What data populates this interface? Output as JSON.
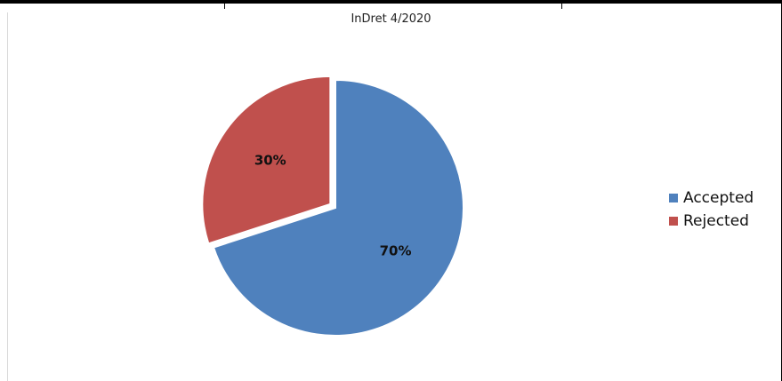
{
  "chart_data": {
    "type": "pie",
    "title": "InDret 4/2020",
    "categories": [
      "Accepted",
      "Rejected"
    ],
    "values": [
      70,
      30
    ],
    "data_labels": [
      "70%",
      "30%"
    ],
    "colors": [
      "#4f81bd",
      "#c0504d"
    ],
    "legend_position": "right"
  }
}
